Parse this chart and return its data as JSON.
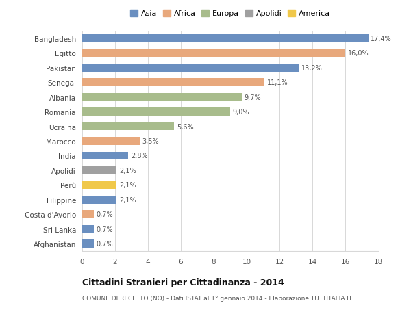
{
  "categories": [
    "Bangladesh",
    "Egitto",
    "Pakistan",
    "Senegal",
    "Albania",
    "Romania",
    "Ucraina",
    "Marocco",
    "India",
    "Apolidi",
    "Perù",
    "Filippine",
    "Costa d'Avorio",
    "Sri Lanka",
    "Afghanistan"
  ],
  "values": [
    17.4,
    16.0,
    13.2,
    11.1,
    9.7,
    9.0,
    5.6,
    3.5,
    2.8,
    2.1,
    2.1,
    2.1,
    0.7,
    0.7,
    0.7
  ],
  "labels": [
    "17,4%",
    "16,0%",
    "13,2%",
    "11,1%",
    "9,7%",
    "9,0%",
    "5,6%",
    "3,5%",
    "2,8%",
    "2,1%",
    "2,1%",
    "2,1%",
    "0,7%",
    "0,7%",
    "0,7%"
  ],
  "bar_colors": [
    "#6a8fc0",
    "#e8a87c",
    "#6a8fc0",
    "#e8a87c",
    "#a8bc8c",
    "#a8bc8c",
    "#a8bc8c",
    "#e8a87c",
    "#6a8fc0",
    "#a0a0a0",
    "#f0c84a",
    "#6a8fc0",
    "#e8a87c",
    "#6a8fc0",
    "#6a8fc0"
  ],
  "legend_labels": [
    "Asia",
    "Africa",
    "Europa",
    "Apolidi",
    "America"
  ],
  "legend_colors": [
    "#6a8fc0",
    "#e8a87c",
    "#a8bc8c",
    "#a0a0a0",
    "#f0c84a"
  ],
  "title": "Cittadini Stranieri per Cittadinanza - 2014",
  "subtitle": "COMUNE DI RECETTO (NO) - Dati ISTAT al 1° gennaio 2014 - Elaborazione TUTTITALIA.IT",
  "xlim": [
    0,
    18
  ],
  "xticks": [
    0,
    2,
    4,
    6,
    8,
    10,
    12,
    14,
    16,
    18
  ],
  "background_color": "#ffffff",
  "grid_color": "#d8d8d8",
  "bar_height": 0.55
}
